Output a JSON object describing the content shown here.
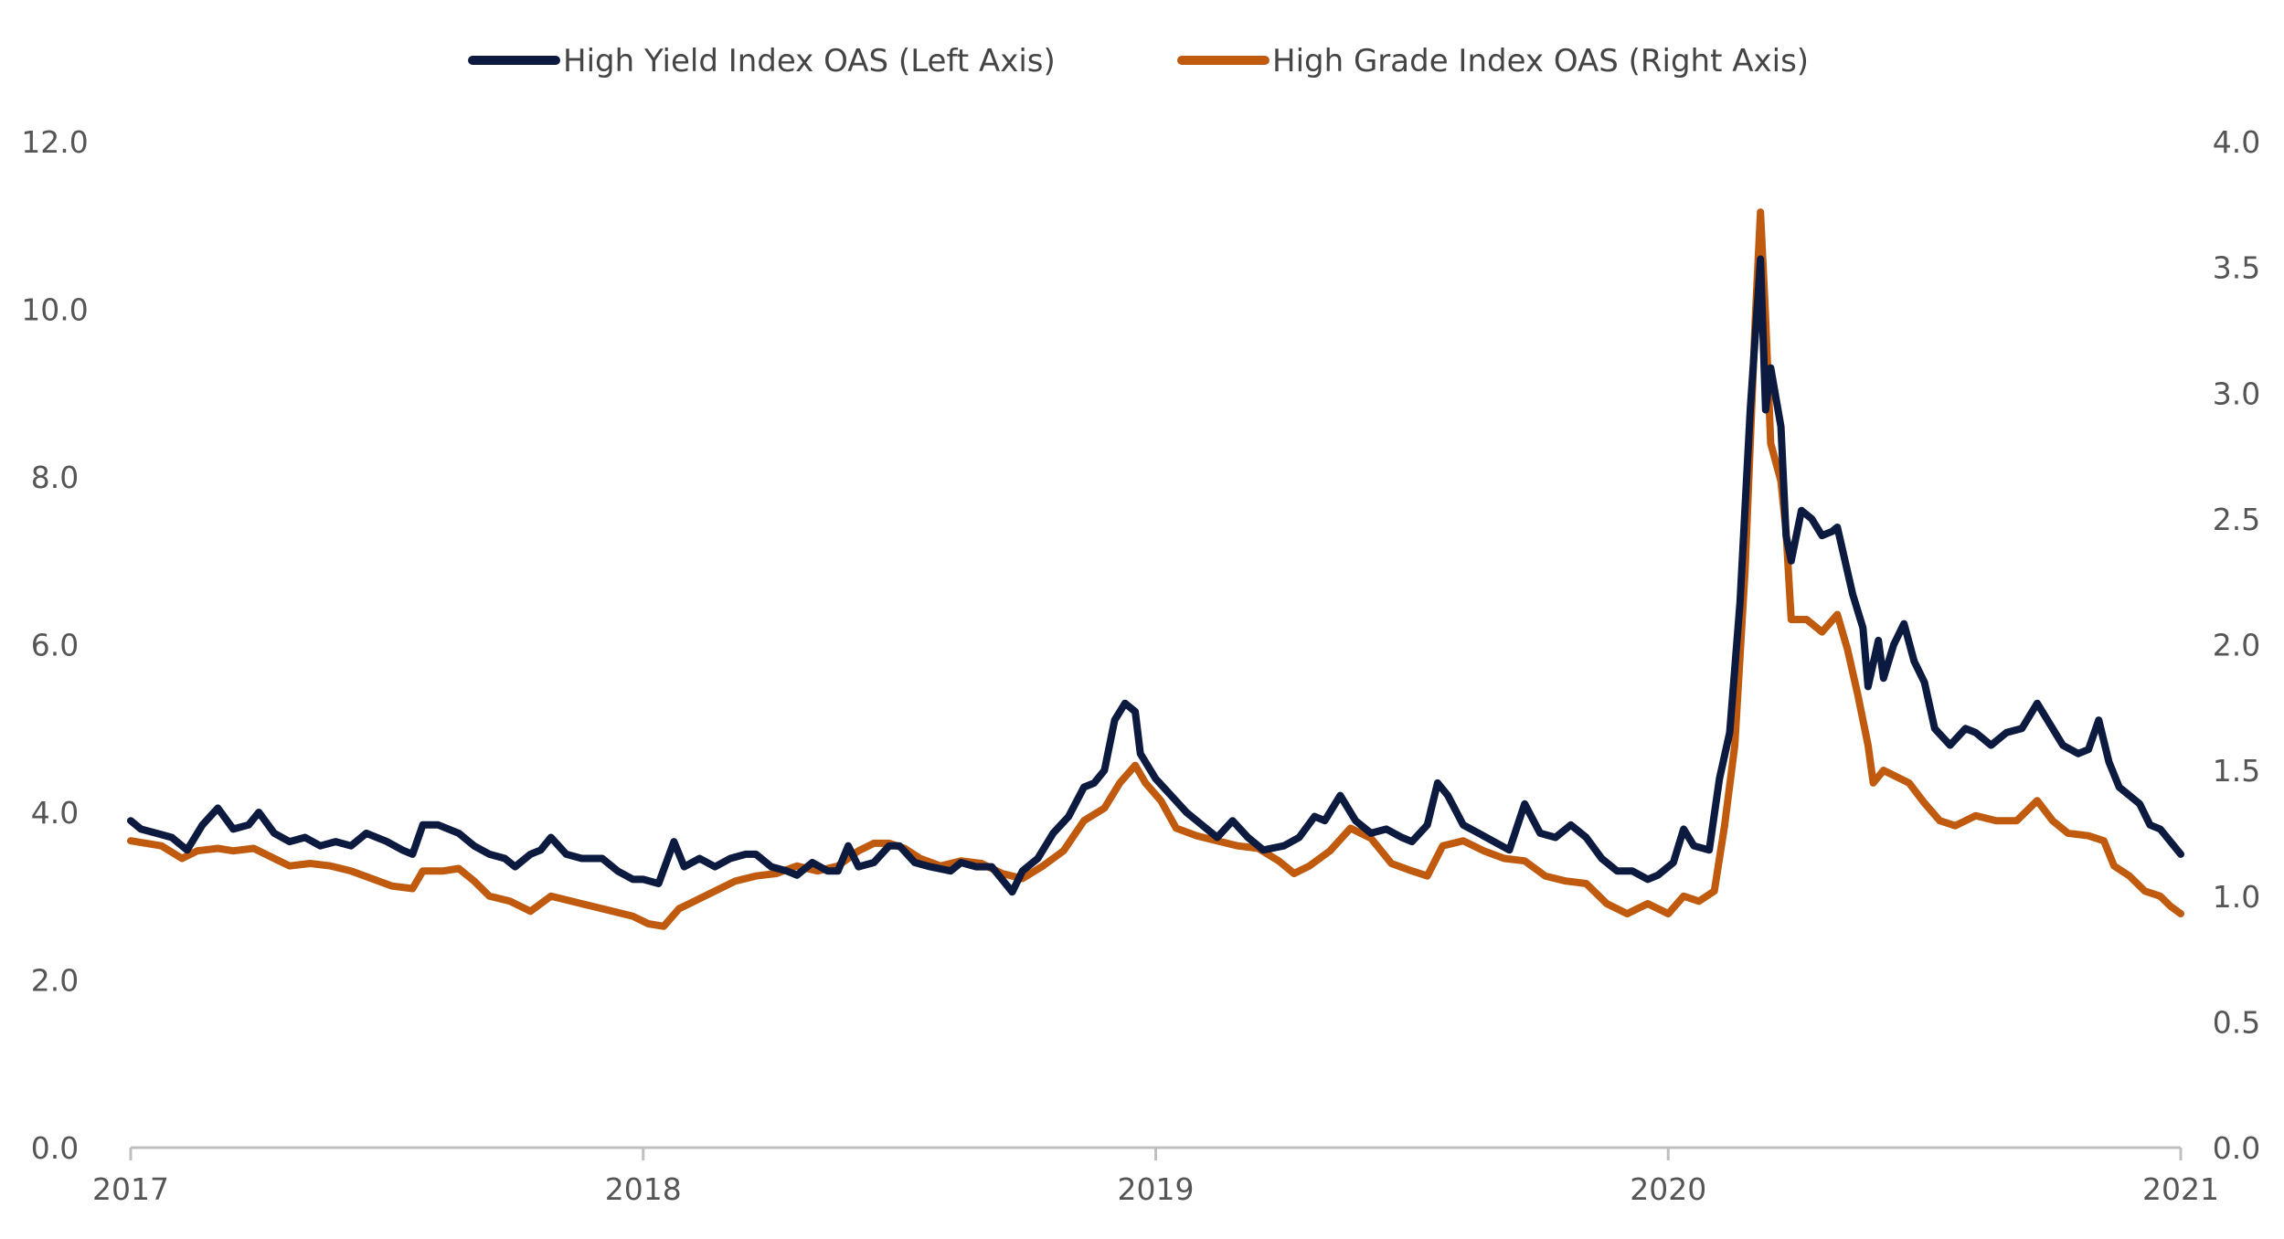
{
  "chart_data": {
    "type": "line",
    "title": "",
    "xlabel": "",
    "ylabel": "",
    "y2label": "",
    "xlim": [
      2017,
      2021
    ],
    "ylim": [
      0,
      12
    ],
    "y2lim": [
      0,
      4
    ],
    "x_ticks": [
      "2017",
      "2018",
      "2019",
      "2020",
      "2021"
    ],
    "y_ticks": [
      "0.0",
      "2.0",
      "4.0",
      "6.0",
      "8.0",
      "10.0",
      "12.0"
    ],
    "y2_ticks": [
      "0.0",
      "0.5",
      "1.0",
      "1.5",
      "2.0",
      "2.5",
      "3.0",
      "3.5",
      "4.0"
    ],
    "grid": false,
    "legend_position": "top-center",
    "series": [
      {
        "name": "High Yield Index OAS (Left Axis)",
        "axis": "left",
        "color": "#0d1a3f",
        "points": [
          [
            2017.0,
            3.9
          ],
          [
            2017.02,
            3.8
          ],
          [
            2017.05,
            3.75
          ],
          [
            2017.08,
            3.7
          ],
          [
            2017.11,
            3.55
          ],
          [
            2017.14,
            3.85
          ],
          [
            2017.17,
            4.05
          ],
          [
            2017.2,
            3.8
          ],
          [
            2017.23,
            3.85
          ],
          [
            2017.25,
            4.0
          ],
          [
            2017.28,
            3.75
          ],
          [
            2017.31,
            3.65
          ],
          [
            2017.34,
            3.7
          ],
          [
            2017.37,
            3.6
          ],
          [
            2017.4,
            3.65
          ],
          [
            2017.43,
            3.6
          ],
          [
            2017.46,
            3.75
          ],
          [
            2017.5,
            3.65
          ],
          [
            2017.53,
            3.55
          ],
          [
            2017.55,
            3.5
          ],
          [
            2017.57,
            3.85
          ],
          [
            2017.6,
            3.85
          ],
          [
            2017.64,
            3.75
          ],
          [
            2017.67,
            3.6
          ],
          [
            2017.7,
            3.5
          ],
          [
            2017.73,
            3.45
          ],
          [
            2017.75,
            3.35
          ],
          [
            2017.78,
            3.5
          ],
          [
            2017.8,
            3.55
          ],
          [
            2017.82,
            3.7
          ],
          [
            2017.85,
            3.5
          ],
          [
            2017.88,
            3.45
          ],
          [
            2017.92,
            3.45
          ],
          [
            2017.95,
            3.3
          ],
          [
            2017.98,
            3.2
          ],
          [
            2018.0,
            3.2
          ],
          [
            2018.03,
            3.15
          ],
          [
            2018.06,
            3.65
          ],
          [
            2018.08,
            3.35
          ],
          [
            2018.11,
            3.45
          ],
          [
            2018.14,
            3.35
          ],
          [
            2018.17,
            3.45
          ],
          [
            2018.2,
            3.5
          ],
          [
            2018.22,
            3.5
          ],
          [
            2018.25,
            3.35
          ],
          [
            2018.28,
            3.3
          ],
          [
            2018.3,
            3.25
          ],
          [
            2018.33,
            3.4
          ],
          [
            2018.36,
            3.3
          ],
          [
            2018.38,
            3.3
          ],
          [
            2018.4,
            3.6
          ],
          [
            2018.42,
            3.35
          ],
          [
            2018.45,
            3.4
          ],
          [
            2018.48,
            3.6
          ],
          [
            2018.5,
            3.6
          ],
          [
            2018.53,
            3.4
          ],
          [
            2018.56,
            3.35
          ],
          [
            2018.6,
            3.3
          ],
          [
            2018.62,
            3.4
          ],
          [
            2018.65,
            3.35
          ],
          [
            2018.68,
            3.35
          ],
          [
            2018.7,
            3.2
          ],
          [
            2018.72,
            3.05
          ],
          [
            2018.74,
            3.3
          ],
          [
            2018.77,
            3.45
          ],
          [
            2018.8,
            3.75
          ],
          [
            2018.83,
            3.95
          ],
          [
            2018.86,
            4.3
          ],
          [
            2018.88,
            4.35
          ],
          [
            2018.9,
            4.5
          ],
          [
            2018.92,
            5.1
          ],
          [
            2018.94,
            5.3
          ],
          [
            2018.96,
            5.2
          ],
          [
            2018.97,
            4.7
          ],
          [
            2019.0,
            4.4
          ],
          [
            2019.03,
            4.2
          ],
          [
            2019.06,
            4.0
          ],
          [
            2019.09,
            3.85
          ],
          [
            2019.12,
            3.7
          ],
          [
            2019.15,
            3.9
          ],
          [
            2019.18,
            3.7
          ],
          [
            2019.21,
            3.55
          ],
          [
            2019.25,
            3.6
          ],
          [
            2019.28,
            3.7
          ],
          [
            2019.31,
            3.95
          ],
          [
            2019.33,
            3.9
          ],
          [
            2019.36,
            4.2
          ],
          [
            2019.39,
            3.9
          ],
          [
            2019.42,
            3.75
          ],
          [
            2019.45,
            3.8
          ],
          [
            2019.48,
            3.7
          ],
          [
            2019.5,
            3.65
          ],
          [
            2019.53,
            3.85
          ],
          [
            2019.55,
            4.35
          ],
          [
            2019.57,
            4.2
          ],
          [
            2019.6,
            3.85
          ],
          [
            2019.63,
            3.75
          ],
          [
            2019.66,
            3.65
          ],
          [
            2019.69,
            3.55
          ],
          [
            2019.72,
            4.1
          ],
          [
            2019.75,
            3.75
          ],
          [
            2019.78,
            3.7
          ],
          [
            2019.81,
            3.85
          ],
          [
            2019.84,
            3.7
          ],
          [
            2019.87,
            3.45
          ],
          [
            2019.9,
            3.3
          ],
          [
            2019.93,
            3.3
          ],
          [
            2019.96,
            3.2
          ],
          [
            2019.98,
            3.25
          ],
          [
            2020.01,
            3.4
          ],
          [
            2020.03,
            3.8
          ],
          [
            2020.05,
            3.6
          ],
          [
            2020.08,
            3.55
          ],
          [
            2020.1,
            4.4
          ],
          [
            2020.12,
            4.95
          ],
          [
            2020.14,
            6.5
          ],
          [
            2020.16,
            8.8
          ],
          [
            2020.18,
            10.6
          ],
          [
            2020.19,
            8.8
          ],
          [
            2020.2,
            9.3
          ],
          [
            2020.22,
            8.6
          ],
          [
            2020.23,
            7.3
          ],
          [
            2020.24,
            7.0
          ],
          [
            2020.26,
            7.6
          ],
          [
            2020.28,
            7.5
          ],
          [
            2020.3,
            7.3
          ],
          [
            2020.32,
            7.35
          ],
          [
            2020.33,
            7.4
          ],
          [
            2020.36,
            6.6
          ],
          [
            2020.38,
            6.2
          ],
          [
            2020.39,
            5.5
          ],
          [
            2020.41,
            6.05
          ],
          [
            2020.42,
            5.6
          ],
          [
            2020.44,
            6.0
          ],
          [
            2020.46,
            6.25
          ],
          [
            2020.48,
            5.8
          ],
          [
            2020.5,
            5.55
          ],
          [
            2020.52,
            5.0
          ],
          [
            2020.55,
            4.8
          ],
          [
            2020.58,
            5.0
          ],
          [
            2020.6,
            4.95
          ],
          [
            2020.63,
            4.8
          ],
          [
            2020.66,
            4.95
          ],
          [
            2020.69,
            5.0
          ],
          [
            2020.72,
            5.3
          ],
          [
            2020.74,
            5.1
          ],
          [
            2020.77,
            4.8
          ],
          [
            2020.8,
            4.7
          ],
          [
            2020.82,
            4.75
          ],
          [
            2020.84,
            5.1
          ],
          [
            2020.86,
            4.6
          ],
          [
            2020.88,
            4.3
          ],
          [
            2020.9,
            4.2
          ],
          [
            2020.92,
            4.1
          ],
          [
            2020.94,
            3.85
          ],
          [
            2020.96,
            3.8
          ],
          [
            2020.98,
            3.65
          ],
          [
            2021.0,
            3.5
          ]
        ]
      },
      {
        "name": "High Grade Index OAS (Right Axis)",
        "axis": "right",
        "color": "#bf5a0e",
        "points": [
          [
            2017.0,
            1.22
          ],
          [
            2017.03,
            1.21
          ],
          [
            2017.06,
            1.2
          ],
          [
            2017.1,
            1.15
          ],
          [
            2017.13,
            1.18
          ],
          [
            2017.17,
            1.19
          ],
          [
            2017.2,
            1.18
          ],
          [
            2017.24,
            1.19
          ],
          [
            2017.28,
            1.15
          ],
          [
            2017.31,
            1.12
          ],
          [
            2017.35,
            1.13
          ],
          [
            2017.39,
            1.12
          ],
          [
            2017.43,
            1.1
          ],
          [
            2017.47,
            1.07
          ],
          [
            2017.51,
            1.04
          ],
          [
            2017.55,
            1.03
          ],
          [
            2017.57,
            1.1
          ],
          [
            2017.61,
            1.1
          ],
          [
            2017.64,
            1.11
          ],
          [
            2017.67,
            1.06
          ],
          [
            2017.7,
            1.0
          ],
          [
            2017.74,
            0.98
          ],
          [
            2017.78,
            0.94
          ],
          [
            2017.82,
            1.0
          ],
          [
            2017.86,
            0.98
          ],
          [
            2017.9,
            0.96
          ],
          [
            2017.94,
            0.94
          ],
          [
            2017.98,
            0.92
          ],
          [
            2018.01,
            0.89
          ],
          [
            2018.04,
            0.88
          ],
          [
            2018.07,
            0.95
          ],
          [
            2018.1,
            0.98
          ],
          [
            2018.14,
            1.02
          ],
          [
            2018.18,
            1.06
          ],
          [
            2018.22,
            1.08
          ],
          [
            2018.26,
            1.09
          ],
          [
            2018.3,
            1.12
          ],
          [
            2018.34,
            1.1
          ],
          [
            2018.38,
            1.12
          ],
          [
            2018.42,
            1.18
          ],
          [
            2018.45,
            1.21
          ],
          [
            2018.48,
            1.21
          ],
          [
            2018.51,
            1.19
          ],
          [
            2018.54,
            1.15
          ],
          [
            2018.58,
            1.12
          ],
          [
            2018.62,
            1.14
          ],
          [
            2018.66,
            1.13
          ],
          [
            2018.7,
            1.09
          ],
          [
            2018.74,
            1.07
          ],
          [
            2018.78,
            1.12
          ],
          [
            2018.82,
            1.18
          ],
          [
            2018.86,
            1.3
          ],
          [
            2018.9,
            1.35
          ],
          [
            2018.93,
            1.45
          ],
          [
            2018.96,
            1.52
          ],
          [
            2018.98,
            1.45
          ],
          [
            2019.01,
            1.38
          ],
          [
            2019.04,
            1.27
          ],
          [
            2019.08,
            1.24
          ],
          [
            2019.12,
            1.22
          ],
          [
            2019.16,
            1.2
          ],
          [
            2019.2,
            1.19
          ],
          [
            2019.24,
            1.14
          ],
          [
            2019.27,
            1.09
          ],
          [
            2019.3,
            1.12
          ],
          [
            2019.34,
            1.18
          ],
          [
            2019.38,
            1.27
          ],
          [
            2019.42,
            1.23
          ],
          [
            2019.46,
            1.13
          ],
          [
            2019.5,
            1.1
          ],
          [
            2019.53,
            1.08
          ],
          [
            2019.56,
            1.2
          ],
          [
            2019.6,
            1.22
          ],
          [
            2019.64,
            1.18
          ],
          [
            2019.68,
            1.15
          ],
          [
            2019.72,
            1.14
          ],
          [
            2019.76,
            1.08
          ],
          [
            2019.8,
            1.06
          ],
          [
            2019.84,
            1.05
          ],
          [
            2019.88,
            0.97
          ],
          [
            2019.92,
            0.93
          ],
          [
            2019.96,
            0.97
          ],
          [
            2020.0,
            0.93
          ],
          [
            2020.03,
            1.0
          ],
          [
            2020.06,
            0.98
          ],
          [
            2020.09,
            1.02
          ],
          [
            2020.11,
            1.28
          ],
          [
            2020.13,
            1.6
          ],
          [
            2020.15,
            2.3
          ],
          [
            2020.17,
            3.3
          ],
          [
            2020.18,
            3.72
          ],
          [
            2020.19,
            3.3
          ],
          [
            2020.2,
            2.8
          ],
          [
            2020.22,
            2.65
          ],
          [
            2020.23,
            2.45
          ],
          [
            2020.24,
            2.1
          ],
          [
            2020.27,
            2.1
          ],
          [
            2020.3,
            2.05
          ],
          [
            2020.33,
            2.12
          ],
          [
            2020.35,
            1.98
          ],
          [
            2020.37,
            1.8
          ],
          [
            2020.39,
            1.6
          ],
          [
            2020.4,
            1.45
          ],
          [
            2020.42,
            1.5
          ],
          [
            2020.44,
            1.48
          ],
          [
            2020.47,
            1.45
          ],
          [
            2020.5,
            1.37
          ],
          [
            2020.53,
            1.3
          ],
          [
            2020.56,
            1.28
          ],
          [
            2020.6,
            1.32
          ],
          [
            2020.64,
            1.3
          ],
          [
            2020.68,
            1.3
          ],
          [
            2020.72,
            1.38
          ],
          [
            2020.75,
            1.3
          ],
          [
            2020.78,
            1.25
          ],
          [
            2020.82,
            1.24
          ],
          [
            2020.85,
            1.22
          ],
          [
            2020.87,
            1.12
          ],
          [
            2020.9,
            1.08
          ],
          [
            2020.93,
            1.02
          ],
          [
            2020.96,
            1.0
          ],
          [
            2020.98,
            0.96
          ],
          [
            2021.0,
            0.93
          ]
        ]
      }
    ]
  }
}
